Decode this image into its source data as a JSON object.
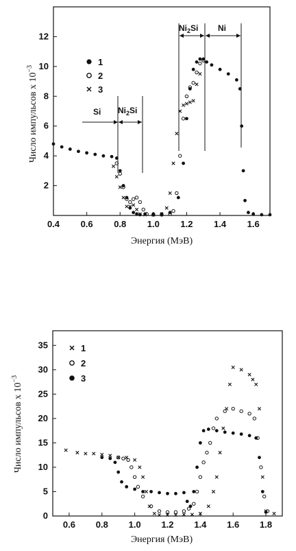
{
  "chart_data": [
    {
      "type": "scatter",
      "xlabel": "Энергия (МэВ)",
      "ylabel": "Число импульсов х 10",
      "ylabel_exp": "−3",
      "xlim": [
        0.4,
        1.7
      ],
      "ylim": [
        0,
        14
      ],
      "xticks": [
        "0.4",
        "0.6",
        "0.8",
        "1.0",
        "1.2",
        "1.4",
        "1.6"
      ],
      "yticks": [
        "2",
        "4",
        "6",
        "8",
        "10",
        "12"
      ],
      "legend_position": "upper-left",
      "annotations": {
        "si": "Si",
        "ni2si_left_base": "Ni",
        "ni2si_left_sub": "2",
        "ni2si_left_tail": "Si",
        "ni2si_right_base": "Ni",
        "ni2si_right_sub": "2",
        "ni2si_right_tail": "Si",
        "ni": "Ni"
      },
      "series": [
        {
          "name": "1",
          "marker": "filled-circle",
          "x": [
            0.4,
            0.45,
            0.5,
            0.55,
            0.6,
            0.65,
            0.7,
            0.75,
            0.78,
            0.8,
            0.82,
            0.84,
            0.86,
            0.88,
            0.9,
            0.92,
            0.95,
            1.0,
            1.05,
            1.1,
            1.15,
            1.18,
            1.2,
            1.22,
            1.24,
            1.26,
            1.28,
            1.3,
            1.32,
            1.35,
            1.4,
            1.45,
            1.5,
            1.52,
            1.53,
            1.54,
            1.55,
            1.57,
            1.6,
            1.65,
            1.7
          ],
          "y": [
            4.8,
            4.6,
            4.45,
            4.3,
            4.2,
            4.1,
            4.0,
            3.95,
            3.85,
            3.0,
            2.0,
            1.2,
            0.5,
            0.2,
            0.1,
            0.05,
            0.1,
            0.1,
            0.1,
            0.2,
            1.2,
            3.5,
            6.5,
            8.5,
            9.8,
            10.3,
            10.5,
            10.5,
            10.3,
            10.1,
            9.8,
            9.5,
            9.1,
            8.5,
            6.0,
            3.0,
            1.0,
            0.2,
            0.1,
            0.05,
            0.05
          ]
        },
        {
          "name": "2",
          "marker": "open-circle",
          "x": [
            0.78,
            0.8,
            0.82,
            0.84,
            0.86,
            0.88,
            0.9,
            0.92,
            0.94,
            0.96,
            1.0,
            1.05,
            1.1,
            1.12,
            1.14,
            1.16,
            1.18,
            1.2,
            1.22,
            1.24,
            1.26,
            1.28,
            1.3
          ],
          "y": [
            3.5,
            2.8,
            1.9,
            1.1,
            0.9,
            1.1,
            1.2,
            0.9,
            0.4,
            0.1,
            0.05,
            0.05,
            0.1,
            0.3,
            1.5,
            4.0,
            6.5,
            8.0,
            8.6,
            8.9,
            9.6,
            10.2,
            10.4
          ]
        },
        {
          "name": "3",
          "marker": "x",
          "x": [
            0.76,
            0.78,
            0.8,
            0.82,
            0.84,
            0.86,
            0.88,
            0.9,
            0.92,
            0.95,
            1.0,
            1.05,
            1.08,
            1.1,
            1.12,
            1.14,
            1.16,
            1.18,
            1.2,
            1.22,
            1.24,
            1.26,
            1.28
          ],
          "y": [
            3.3,
            2.6,
            1.9,
            1.2,
            0.6,
            0.6,
            0.7,
            0.4,
            0.1,
            0.05,
            0.05,
            0.1,
            0.5,
            1.5,
            3.5,
            5.5,
            7.0,
            7.4,
            7.5,
            7.6,
            7.7,
            8.8,
            9.5
          ]
        }
      ]
    },
    {
      "type": "scatter",
      "xlabel": "Энергия (МэВ)",
      "ylabel": "Число импульсов х 10",
      "ylabel_exp": "−3",
      "xlim": [
        0.5,
        1.9
      ],
      "ylim": [
        0,
        38
      ],
      "xticks": [
        "0.6",
        "0.8",
        "1.0",
        "1.2",
        "1.4",
        "1.6",
        "1.8"
      ],
      "yticks": [
        "0",
        "5",
        "10",
        "15",
        "20",
        "25",
        "30",
        "35"
      ],
      "legend_position": "upper-left",
      "series": [
        {
          "name": "1",
          "marker": "x",
          "x": [
            0.58,
            0.65,
            0.7,
            0.75,
            0.8,
            0.85,
            0.9,
            0.95,
            1.0,
            1.03,
            1.05,
            1.07,
            1.09,
            1.12,
            1.15,
            1.2,
            1.25,
            1.3,
            1.35,
            1.4,
            1.45,
            1.48,
            1.5,
            1.52,
            1.54,
            1.56,
            1.58,
            1.6,
            1.65,
            1.7,
            1.72,
            1.74,
            1.76,
            1.78,
            1.8,
            1.85
          ],
          "y": [
            13.5,
            13.0,
            12.8,
            12.8,
            12.6,
            12.4,
            12.0,
            12.0,
            11.5,
            10.0,
            8.0,
            5.0,
            2.0,
            0.5,
            0.2,
            0.2,
            0.2,
            0.3,
            0.3,
            0.5,
            2.0,
            5.0,
            8.0,
            13.0,
            18.0,
            22.0,
            27.0,
            30.5,
            30.0,
            29.0,
            28.0,
            27.0,
            22.0,
            8.0,
            1.0,
            0.5
          ]
        },
        {
          "name": "2",
          "marker": "open-circle",
          "x": [
            0.9,
            0.93,
            0.96,
            0.98,
            1.0,
            1.02,
            1.05,
            1.1,
            1.15,
            1.2,
            1.25,
            1.3,
            1.33,
            1.36,
            1.38,
            1.4,
            1.42,
            1.44,
            1.46,
            1.48,
            1.5,
            1.55,
            1.6,
            1.65,
            1.7,
            1.73,
            1.75,
            1.77,
            1.79,
            1.81
          ],
          "y": [
            12.0,
            11.8,
            11.5,
            10.0,
            8.0,
            6.0,
            4.0,
            2.0,
            1.0,
            0.8,
            0.8,
            1.0,
            1.5,
            2.5,
            5.0,
            8.0,
            11.0,
            13.0,
            15.0,
            18.0,
            20.0,
            21.5,
            22.0,
            21.5,
            21.0,
            20.0,
            16.0,
            10.0,
            4.0,
            1.0
          ]
        },
        {
          "name": "3",
          "marker": "filled-circle",
          "x": [
            0.8,
            0.85,
            0.88,
            0.9,
            0.92,
            0.95,
            1.0,
            1.05,
            1.1,
            1.15,
            1.2,
            1.25,
            1.3,
            1.32,
            1.34,
            1.36,
            1.38,
            1.4,
            1.42,
            1.45,
            1.5,
            1.55,
            1.6,
            1.65,
            1.7,
            1.74,
            1.76,
            1.78,
            1.8
          ],
          "y": [
            12.0,
            11.8,
            11.0,
            9.0,
            7.0,
            6.0,
            5.5,
            5.0,
            5.0,
            4.8,
            4.6,
            4.6,
            4.8,
            3.0,
            2.0,
            5.0,
            10.0,
            15.0,
            17.5,
            17.8,
            17.5,
            17.2,
            17.0,
            16.8,
            16.5,
            16.0,
            12.0,
            5.0,
            0.8
          ]
        }
      ]
    }
  ]
}
